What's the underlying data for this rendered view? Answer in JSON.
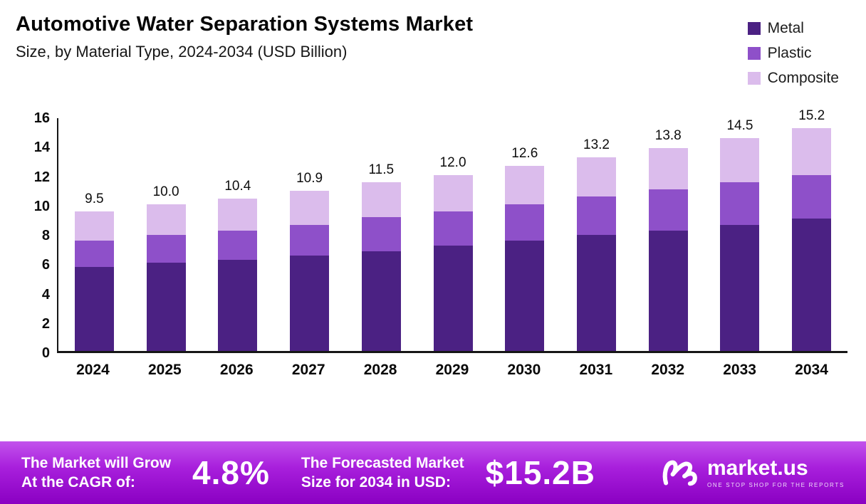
{
  "header": {
    "title": "Automotive Water Separation Systems Market",
    "subtitle": "Size, by Material Type, 2024-2034 (USD Billion)"
  },
  "legend": [
    {
      "label": "Metal",
      "color": "#4b2183"
    },
    {
      "label": "Plastic",
      "color": "#8e50c9"
    },
    {
      "label": "Composite",
      "color": "#dbbcec"
    }
  ],
  "chart_data": {
    "type": "bar",
    "stacked": true,
    "title": "Automotive Water Separation Systems Market Size, by Material Type, 2024-2034 (USD Billion)",
    "unit": "USD Billion",
    "categories": [
      "2024",
      "2025",
      "2026",
      "2027",
      "2028",
      "2029",
      "2030",
      "2031",
      "2032",
      "2033",
      "2034"
    ],
    "series": [
      {
        "name": "Metal",
        "color": "#4b2183",
        "values": [
          5.7,
          6.0,
          6.2,
          6.5,
          6.8,
          7.2,
          7.5,
          7.9,
          8.2,
          8.6,
          9.0
        ]
      },
      {
        "name": "Plastic",
        "color": "#8e50c9",
        "values": [
          1.8,
          1.9,
          2.0,
          2.1,
          2.3,
          2.3,
          2.5,
          2.6,
          2.8,
          2.9,
          3.0
        ]
      },
      {
        "name": "Composite",
        "color": "#dbbcec",
        "values": [
          2.0,
          2.1,
          2.2,
          2.3,
          2.4,
          2.5,
          2.6,
          2.7,
          2.8,
          3.0,
          3.2
        ]
      }
    ],
    "totals": [
      9.5,
      10.0,
      10.4,
      10.9,
      11.5,
      12.0,
      12.6,
      13.2,
      13.8,
      14.5,
      15.2
    ],
    "total_labels": [
      "9.5",
      "10.0",
      "10.4",
      "10.9",
      "11.5",
      "12.0",
      "12.6",
      "13.2",
      "13.8",
      "14.5",
      "15.2"
    ],
    "ylim": [
      0,
      16
    ],
    "yticks": [
      0,
      2,
      4,
      6,
      8,
      10,
      12,
      14,
      16
    ],
    "grid": false,
    "legend_position": "top-right"
  },
  "banner": {
    "growth_label_line1": "The Market will Grow",
    "growth_label_line2": "At the CAGR of:",
    "cagr_value": "4.8%",
    "forecast_label_line1": "The Forecasted Market",
    "forecast_label_line2": "Size for 2034 in USD:",
    "forecast_value": "$15.2B",
    "logo_text": "market.us",
    "logo_tagline": "ONE STOP SHOP FOR THE REPORTS"
  }
}
